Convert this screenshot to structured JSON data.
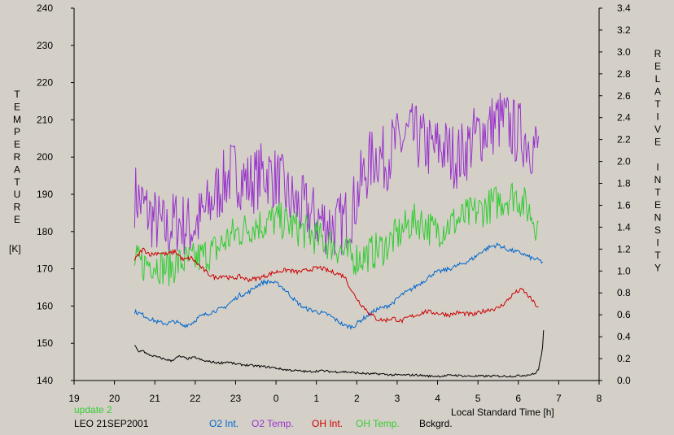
{
  "chart_data": {
    "type": "line",
    "xlabel": "Local Standard Time [h]",
    "ylabel_left_letters": [
      "T",
      "E",
      "M",
      "P",
      "E",
      "R",
      "A",
      "T",
      "U",
      "R",
      "E"
    ],
    "ylabel_left_unit": "[K]",
    "ylabel_right_letters": [
      "R",
      "E",
      "L",
      "A",
      "T",
      "I",
      "V",
      "E",
      "",
      "I",
      "N",
      "T",
      "E",
      "N",
      "S",
      "I",
      "T",
      "Y"
    ],
    "xlim": [
      19,
      32
    ],
    "xticks": [
      19,
      20,
      21,
      22,
      23,
      24,
      25,
      26,
      27,
      28,
      29,
      30,
      31,
      32
    ],
    "xtick_labels": [
      "19",
      "20",
      "21",
      "22",
      "23",
      "0",
      "1",
      "2",
      "3",
      "4",
      "5",
      "6",
      "7",
      "8"
    ],
    "ylim_left": [
      140,
      240
    ],
    "yticks_left": [
      140,
      150,
      160,
      170,
      180,
      190,
      200,
      210,
      220,
      230,
      240
    ],
    "yticks_left_labels": [
      "140",
      "150",
      "160",
      "170",
      "180",
      "190",
      "200",
      "210",
      "220",
      "230",
      "240"
    ],
    "ylim_right": [
      0,
      3.4
    ],
    "yticks_right": [
      0,
      0.2,
      0.4,
      0.6,
      0.8,
      1.0,
      1.2,
      1.4,
      1.6,
      1.8,
      2.0,
      2.2,
      2.4,
      2.6,
      2.8,
      3.0,
      3.2,
      3.4
    ],
    "yticks_right_labels": [
      "0.0",
      "0.2",
      "0.4",
      "0.6",
      "0.8",
      "1.0",
      "1.2",
      "1.4",
      "1.6",
      "1.8",
      "2.0",
      "2.2",
      "2.4",
      "2.6",
      "2.8",
      "3.0",
      "3.2",
      "3.4"
    ],
    "series": [
      {
        "name": "O2 Temp.",
        "axis": "left",
        "color": "#9933cc",
        "x": [
          20.5,
          20.7,
          20.9,
          21.1,
          21.3,
          21.5,
          21.7,
          21.9,
          22.1,
          22.3,
          22.5,
          22.7,
          22.9,
          23.1,
          23.3,
          23.5,
          23.7,
          23.9,
          24.1,
          24.3,
          24.5,
          24.7,
          24.9,
          25.1,
          25.3,
          25.5,
          25.7,
          25.9,
          26.1,
          26.3,
          26.5,
          26.7,
          26.9,
          27.1,
          27.3,
          27.5,
          27.7,
          27.9,
          28.1,
          28.3,
          28.5,
          28.7,
          28.9,
          29.1,
          29.3,
          29.5,
          29.7,
          29.9,
          30.1,
          30.3,
          30.5
        ],
        "y": [
          190,
          187,
          184,
          182,
          180,
          183,
          182,
          181,
          183,
          186,
          190,
          193,
          196,
          195,
          193,
          194,
          196,
          195,
          193,
          189,
          187,
          186,
          184,
          183,
          182,
          181,
          183,
          186,
          193,
          198,
          201,
          199,
          203,
          204,
          206,
          205,
          203,
          202,
          203,
          201,
          200,
          202,
          205,
          207,
          208,
          210,
          209,
          207,
          206,
          204,
          202
        ],
        "noise": 9
      },
      {
        "name": "OH Temp.",
        "axis": "left",
        "color": "#33cc33",
        "x": [
          20.5,
          20.7,
          20.9,
          21.1,
          21.3,
          21.5,
          21.7,
          21.9,
          22.1,
          22.3,
          22.5,
          22.7,
          22.9,
          23.1,
          23.3,
          23.5,
          23.7,
          23.9,
          24.1,
          24.3,
          24.5,
          24.7,
          24.9,
          25.1,
          25.3,
          25.5,
          25.7,
          25.9,
          26.1,
          26.3,
          26.5,
          26.7,
          26.9,
          27.1,
          27.3,
          27.5,
          27.7,
          27.9,
          28.1,
          28.3,
          28.5,
          28.7,
          28.9,
          29.1,
          29.3,
          29.5,
          29.7,
          29.9,
          30.1,
          30.3,
          30.5
        ],
        "y": [
          172,
          171,
          172,
          171,
          170,
          171,
          172,
          172,
          173,
          174,
          175,
          177,
          179,
          180,
          181,
          182,
          182,
          183,
          183,
          182,
          181,
          180,
          179,
          178,
          177,
          176,
          174,
          173,
          173,
          174,
          175,
          176,
          178,
          180,
          182,
          183,
          182,
          180,
          181,
          182,
          183,
          184,
          185,
          186,
          187,
          188,
          189,
          190,
          188,
          185,
          181
        ],
        "noise": 5
      },
      {
        "name": "O2 Int.",
        "axis": "right",
        "color": "#0066cc",
        "x": [
          20.5,
          20.7,
          20.9,
          21.1,
          21.3,
          21.5,
          21.7,
          21.9,
          22.1,
          22.3,
          22.5,
          22.7,
          22.9,
          23.1,
          23.3,
          23.5,
          23.7,
          23.9,
          24.1,
          24.3,
          24.5,
          24.7,
          24.9,
          25.1,
          25.3,
          25.5,
          25.7,
          25.9,
          26.1,
          26.3,
          26.5,
          26.7,
          26.9,
          27.1,
          27.3,
          27.5,
          27.7,
          27.9,
          28.1,
          28.3,
          28.5,
          28.7,
          28.9,
          29.1,
          29.3,
          29.5,
          29.7,
          29.9,
          30.1,
          30.3,
          30.5,
          30.6
        ],
        "y": [
          0.63,
          0.6,
          0.56,
          0.53,
          0.52,
          0.54,
          0.5,
          0.52,
          0.58,
          0.61,
          0.64,
          0.66,
          0.72,
          0.78,
          0.8,
          0.86,
          0.9,
          0.9,
          0.87,
          0.8,
          0.72,
          0.66,
          0.64,
          0.62,
          0.6,
          0.55,
          0.5,
          0.49,
          0.55,
          0.6,
          0.65,
          0.67,
          0.71,
          0.78,
          0.82,
          0.87,
          0.92,
          0.98,
          1.0,
          1.02,
          1.05,
          1.08,
          1.12,
          1.18,
          1.22,
          1.24,
          1.2,
          1.18,
          1.16,
          1.12,
          1.1,
          1.08
        ],
        "noise": 0.02
      },
      {
        "name": "OH Int.",
        "axis": "right",
        "color": "#cc0000",
        "x": [
          20.5,
          20.7,
          20.9,
          21.1,
          21.3,
          21.5,
          21.7,
          21.9,
          22.1,
          22.3,
          22.5,
          22.7,
          22.9,
          23.1,
          23.3,
          23.5,
          23.7,
          23.9,
          24.1,
          24.3,
          24.5,
          24.7,
          24.9,
          25.1,
          25.3,
          25.5,
          25.7,
          25.9,
          26.1,
          26.3,
          26.5,
          26.7,
          26.9,
          27.1,
          27.3,
          27.5,
          27.7,
          27.9,
          28.1,
          28.3,
          28.5,
          28.7,
          28.9,
          29.1,
          29.3,
          29.5,
          29.7,
          29.9,
          30.1,
          30.3,
          30.5
        ],
        "y": [
          1.1,
          1.2,
          1.15,
          1.17,
          1.15,
          1.18,
          1.1,
          1.12,
          1.05,
          0.98,
          0.94,
          0.96,
          0.93,
          0.95,
          0.92,
          0.93,
          0.95,
          0.98,
          1.0,
          1.01,
          0.99,
          1.0,
          1.02,
          1.03,
          1.0,
          0.98,
          0.95,
          0.8,
          0.7,
          0.62,
          0.56,
          0.55,
          0.57,
          0.54,
          0.58,
          0.6,
          0.63,
          0.62,
          0.61,
          0.6,
          0.62,
          0.61,
          0.6,
          0.63,
          0.65,
          0.66,
          0.72,
          0.8,
          0.83,
          0.75,
          0.66
        ],
        "noise": 0.02
      },
      {
        "name": "Bckgrd.",
        "axis": "right",
        "color": "#000000",
        "x": [
          20.5,
          20.6,
          20.7,
          20.8,
          21.0,
          21.2,
          21.4,
          21.6,
          21.8,
          22.0,
          22.2,
          22.4,
          22.6,
          22.8,
          23.0,
          23.3,
          23.6,
          23.9,
          24.2,
          24.5,
          24.8,
          25.1,
          25.4,
          25.7,
          26.0,
          26.3,
          26.6,
          26.9,
          27.2,
          27.5,
          27.8,
          28.1,
          28.4,
          28.7,
          29.0,
          29.3,
          29.6,
          29.9,
          30.2,
          30.4,
          30.5,
          30.55,
          30.6,
          30.63
        ],
        "y": [
          0.32,
          0.26,
          0.28,
          0.24,
          0.22,
          0.2,
          0.18,
          0.22,
          0.2,
          0.21,
          0.18,
          0.17,
          0.16,
          0.17,
          0.15,
          0.14,
          0.13,
          0.12,
          0.1,
          0.09,
          0.08,
          0.09,
          0.08,
          0.08,
          0.07,
          0.06,
          0.06,
          0.05,
          0.05,
          0.05,
          0.04,
          0.04,
          0.05,
          0.04,
          0.04,
          0.04,
          0.04,
          0.04,
          0.05,
          0.06,
          0.1,
          0.2,
          0.3,
          0.48
        ],
        "noise": 0.01
      }
    ]
  },
  "labels": {
    "update": "update 2",
    "station": "LEO 21SEP2001",
    "xaxis": "Local Standard Time [h]"
  },
  "legend": [
    {
      "label": "O2 Int.",
      "color": "#0066cc"
    },
    {
      "label": "O2 Temp.",
      "color": "#9933cc"
    },
    {
      "label": "OH Int.",
      "color": "#cc0000"
    },
    {
      "label": "OH Temp.",
      "color": "#33cc33"
    },
    {
      "label": "Bckgrd.",
      "color": "#000000"
    }
  ]
}
